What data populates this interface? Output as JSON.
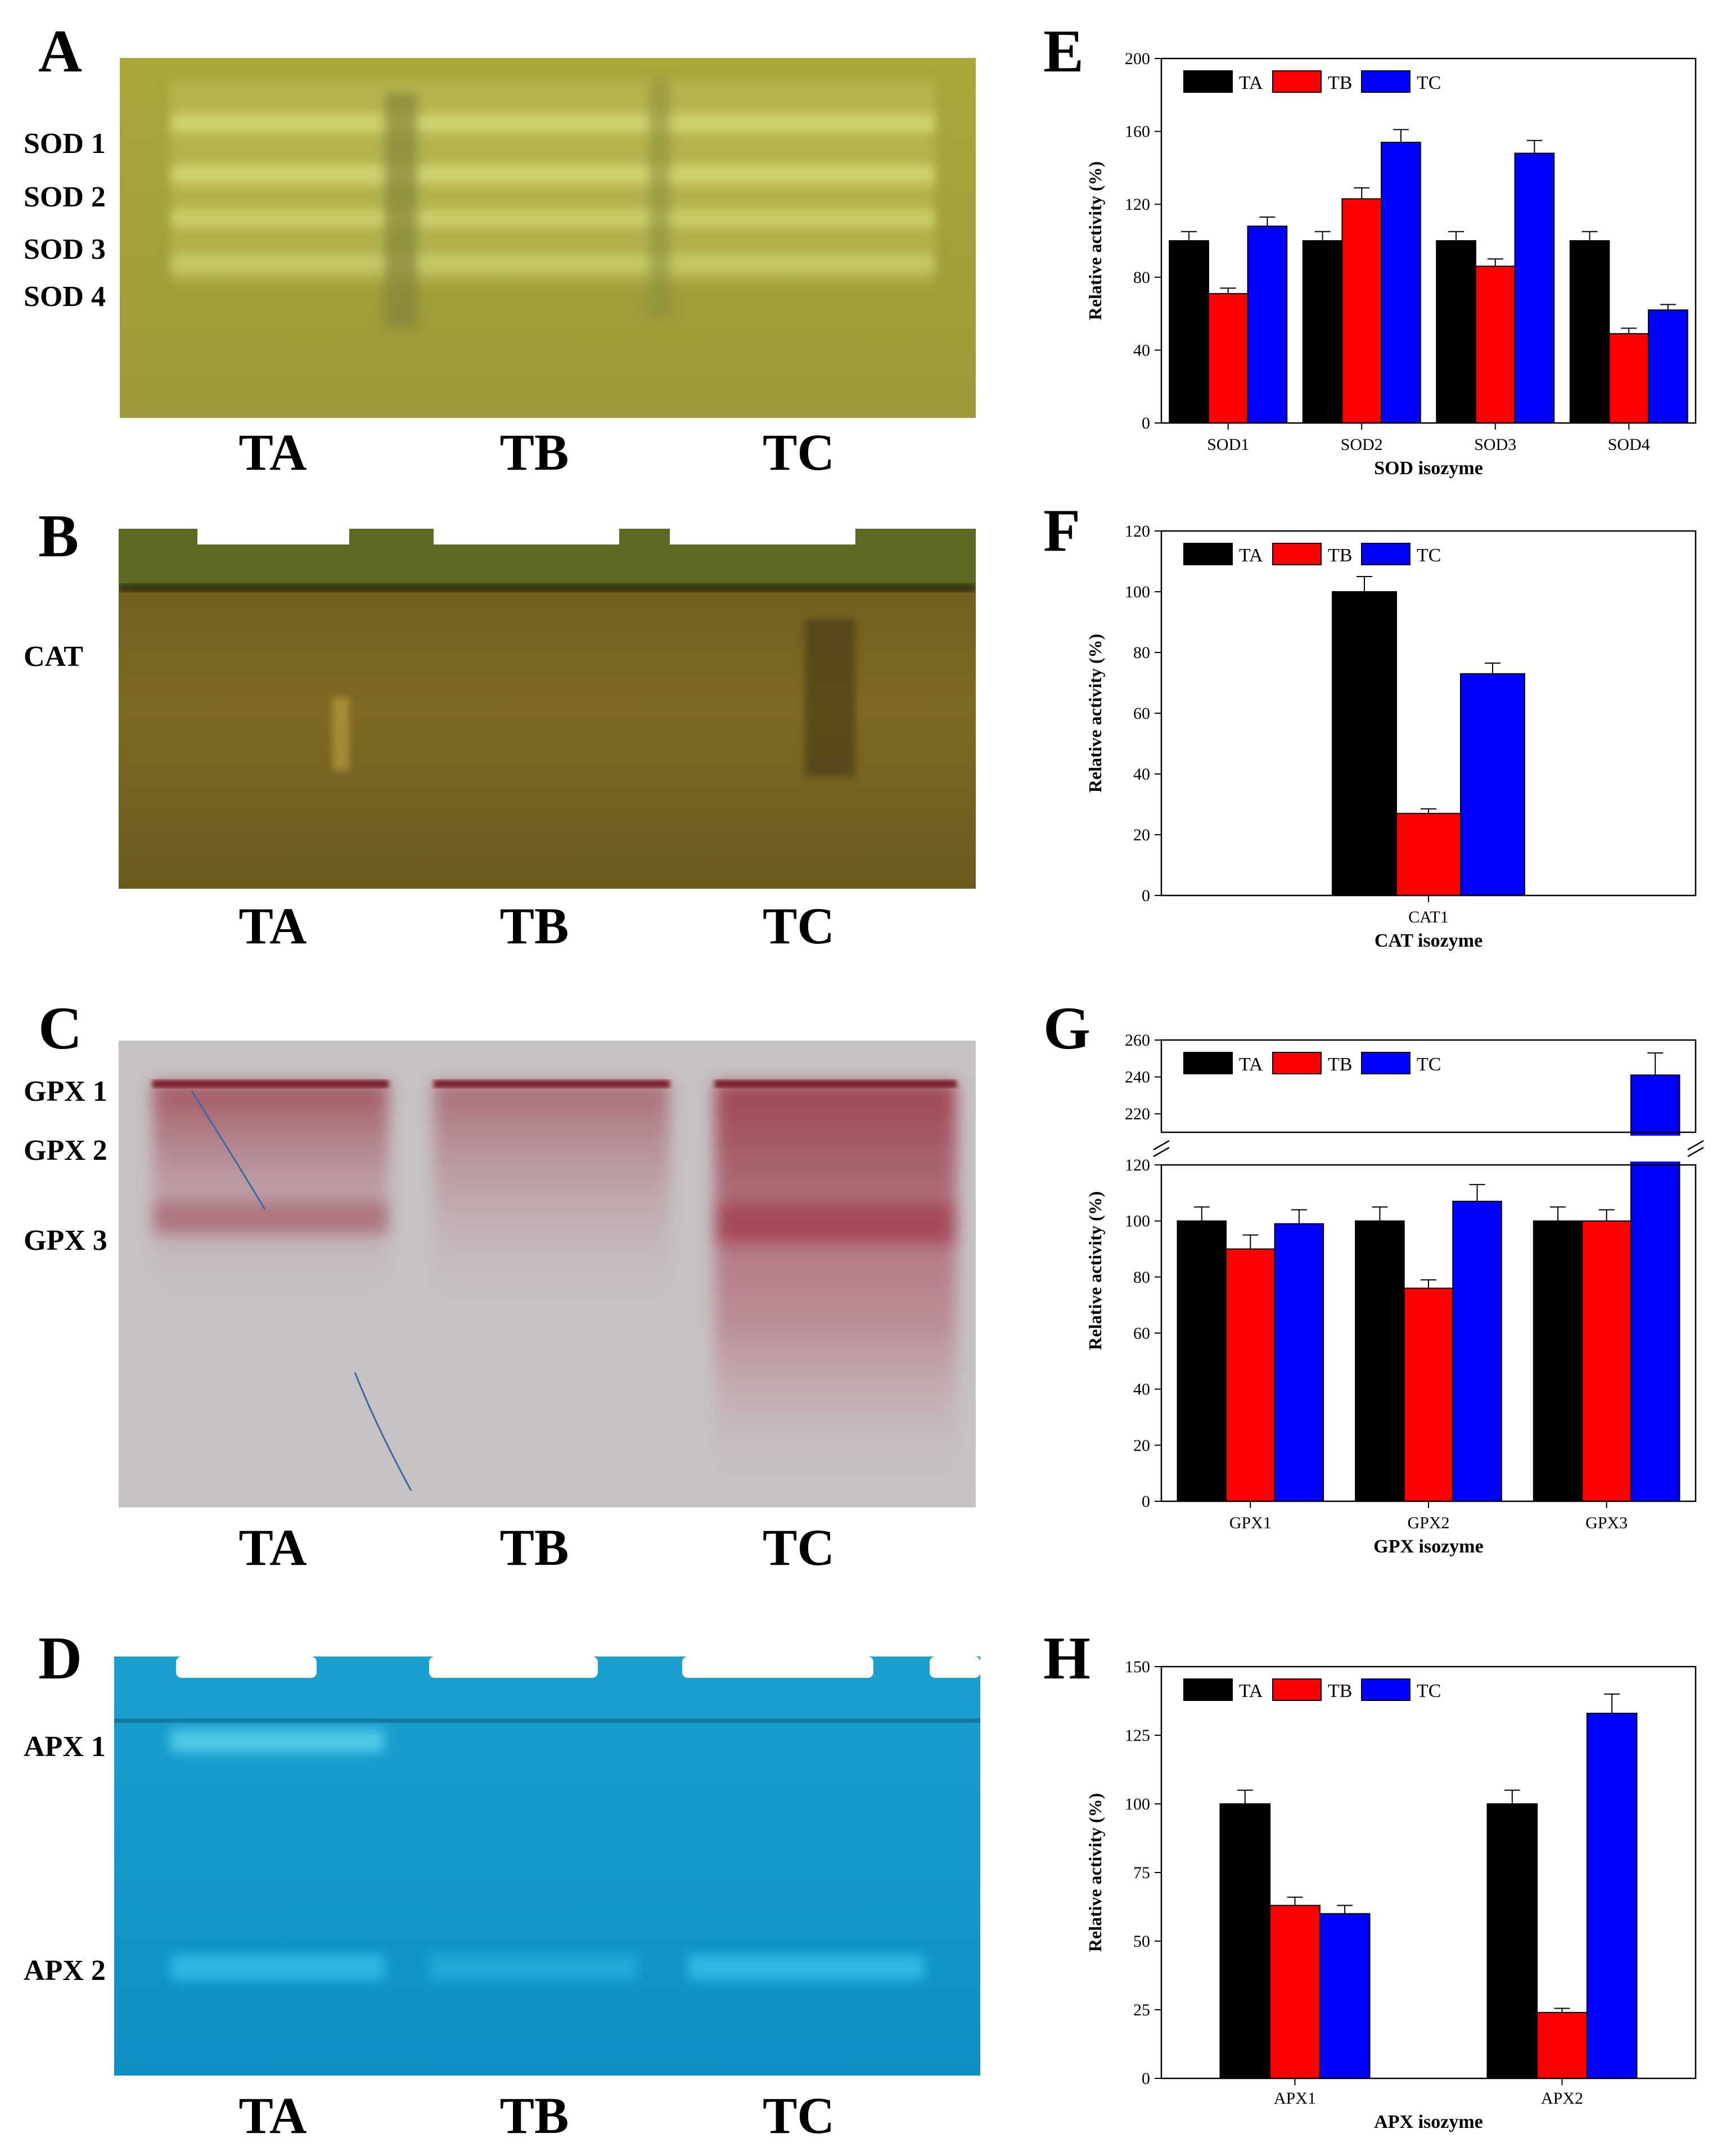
{
  "panels": {
    "A": {
      "letter": "A",
      "bands": [
        "SOD 1",
        "SOD 2",
        "SOD 3",
        "SOD 4"
      ],
      "lanes": [
        "TA",
        "TB",
        "TC"
      ]
    },
    "B": {
      "letter": "B",
      "bands": [
        "CAT"
      ],
      "lanes": [
        "TA",
        "TB",
        "TC"
      ]
    },
    "C": {
      "letter": "C",
      "bands": [
        "GPX 1",
        "GPX 2",
        "GPX 3"
      ],
      "lanes": [
        "TA",
        "TB",
        "TC"
      ]
    },
    "D": {
      "letter": "D",
      "bands": [
        "APX 1",
        "APX 2"
      ],
      "lanes": [
        "TA",
        "TB",
        "TC"
      ]
    },
    "E": {
      "letter": "E"
    },
    "F": {
      "letter": "F"
    },
    "G": {
      "letter": "G"
    },
    "H": {
      "letter": "H"
    }
  },
  "colors": {
    "TA": "#000000",
    "TB": "#ff0000",
    "TC": "#0000ff"
  },
  "chart_data": [
    {
      "id": "E",
      "type": "bar",
      "title": "",
      "categories": [
        "SOD1",
        "SOD2",
        "SOD3",
        "SOD4"
      ],
      "series": [
        {
          "name": "TA",
          "values": [
            100,
            100,
            100,
            100
          ],
          "errors": [
            5,
            5,
            5,
            5
          ]
        },
        {
          "name": "TB",
          "values": [
            71,
            123,
            86,
            49
          ],
          "errors": [
            3,
            6,
            4,
            3
          ]
        },
        {
          "name": "TC",
          "values": [
            108,
            154,
            148,
            62
          ],
          "errors": [
            5,
            7,
            7,
            3
          ]
        }
      ],
      "xlabel": "SOD isozyme",
      "ylabel": "Relative activity (%)",
      "ylim": [
        0,
        200
      ],
      "yticks": [
        0,
        40,
        80,
        120,
        160,
        200
      ],
      "legend": "top-left"
    },
    {
      "id": "F",
      "type": "bar",
      "title": "",
      "categories": [
        "CAT1"
      ],
      "series": [
        {
          "name": "TA",
          "values": [
            100
          ],
          "errors": [
            5
          ]
        },
        {
          "name": "TB",
          "values": [
            27
          ],
          "errors": [
            1.5
          ]
        },
        {
          "name": "TC",
          "values": [
            73
          ],
          "errors": [
            3.5
          ]
        }
      ],
      "xlabel": "CAT isozyme",
      "ylabel": "Relative activity (%)",
      "ylim": [
        0,
        120
      ],
      "yticks": [
        0,
        20,
        40,
        60,
        80,
        100,
        120
      ],
      "legend": "top-left"
    },
    {
      "id": "G",
      "type": "bar",
      "title": "",
      "categories": [
        "GPX1",
        "GPX2",
        "GPX3"
      ],
      "series": [
        {
          "name": "TA",
          "values": [
            100,
            100,
            100
          ],
          "errors": [
            5,
            5,
            5
          ]
        },
        {
          "name": "TB",
          "values": [
            90,
            76,
            100
          ],
          "errors": [
            5,
            3,
            4
          ]
        },
        {
          "name": "TC",
          "values": [
            99,
            107,
            241
          ],
          "errors": [
            5,
            6,
            12
          ]
        }
      ],
      "xlabel": "GPX isozyme",
      "ylabel": "Relative activity (%)",
      "ylim": [
        0,
        260
      ],
      "axis_break": [
        120,
        210
      ],
      "yticks": [
        0,
        20,
        40,
        60,
        80,
        100,
        120,
        220,
        240,
        260
      ],
      "legend": "top-left"
    },
    {
      "id": "H",
      "type": "bar",
      "title": "",
      "categories": [
        "APX1",
        "APX2"
      ],
      "series": [
        {
          "name": "TA",
          "values": [
            100,
            100
          ],
          "errors": [
            5,
            5
          ]
        },
        {
          "name": "TB",
          "values": [
            63,
            24
          ],
          "errors": [
            3,
            1.5
          ]
        },
        {
          "name": "TC",
          "values": [
            60,
            133
          ],
          "errors": [
            3,
            7
          ]
        }
      ],
      "xlabel": "APX isozyme",
      "ylabel": "Relative activity (%)",
      "ylim": [
        0,
        150
      ],
      "yticks": [
        0,
        25,
        50,
        75,
        100,
        125,
        150
      ],
      "legend": "top-left"
    }
  ]
}
